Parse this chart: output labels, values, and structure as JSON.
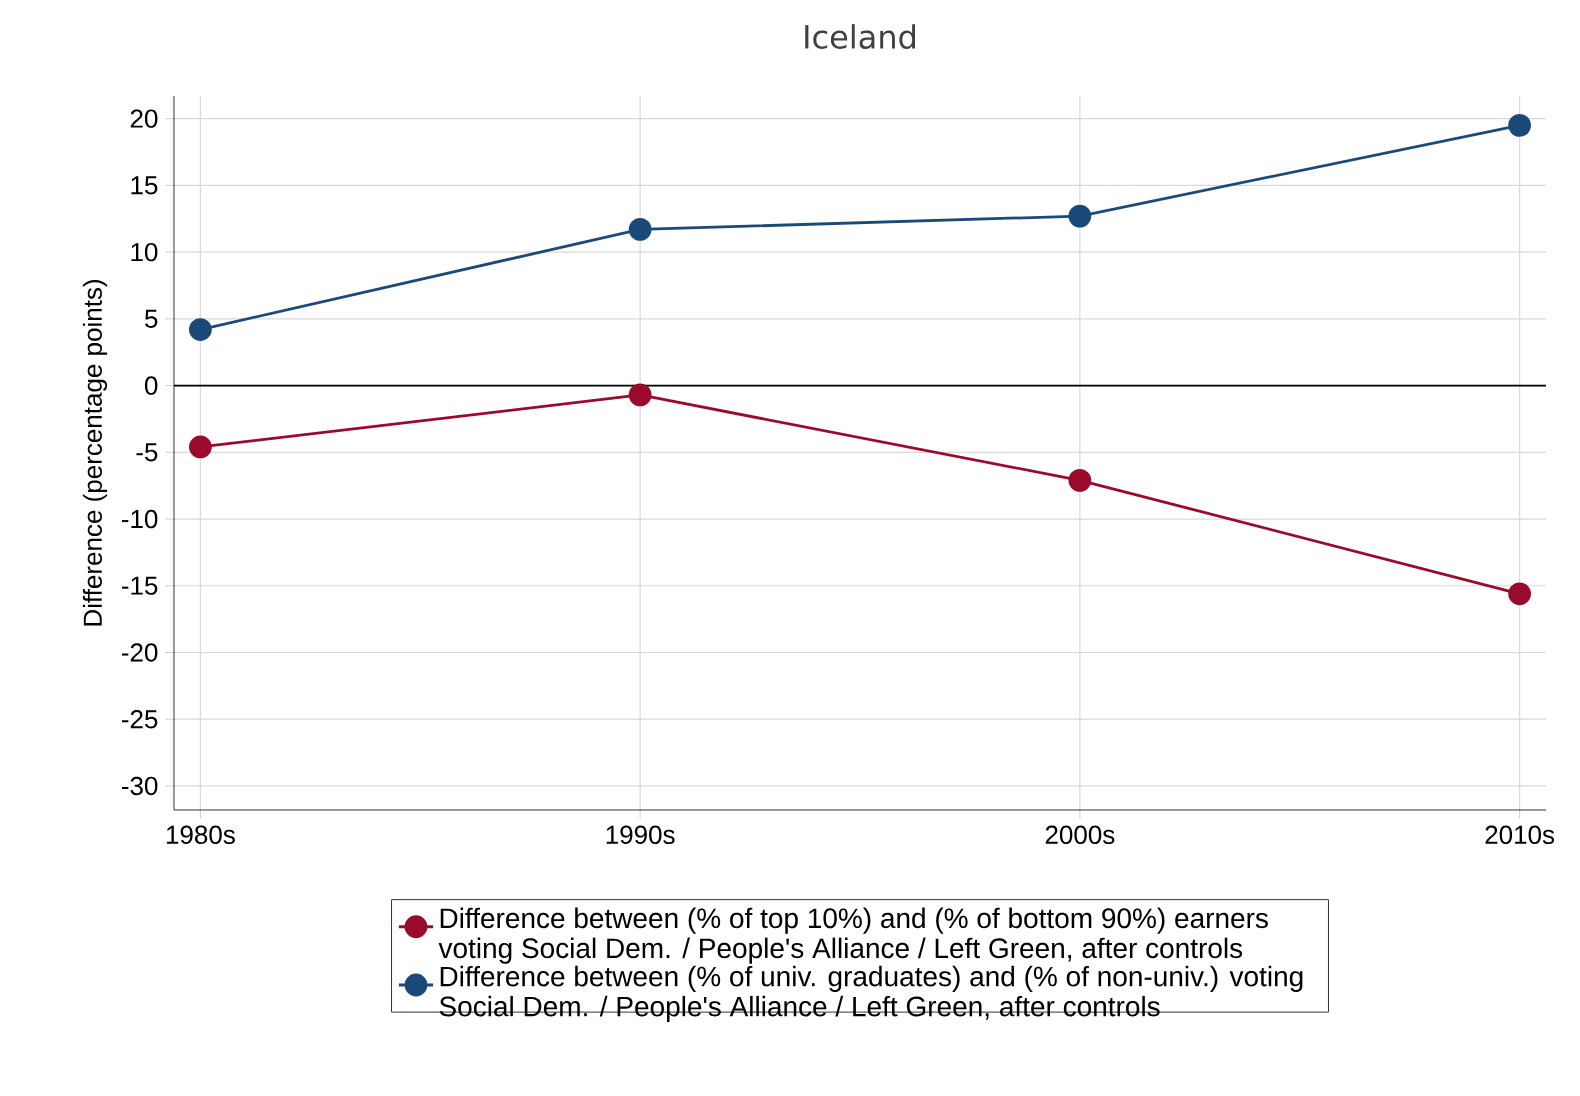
{
  "chart_data": {
    "type": "line",
    "title": "Iceland",
    "ylabel": "Difference (percentage points)",
    "categories": [
      "1980s",
      "1990s",
      "2000s",
      "2010s"
    ],
    "series": [
      {
        "name": "Difference between (% of top 10%) and (% of bottom 90%) earners voting Social Dem. / People's Alliance / Left Green, after controls",
        "color": "#9a0a2c",
        "values": [
          -4.6,
          -0.7,
          -7.1,
          -15.6
        ]
      },
      {
        "name": "Difference between (% of univ. graduates) and (% of non-univ.) voting Social Dem. / People's Alliance / Left Green, after controls",
        "color": "#1b4a78",
        "values": [
          4.2,
          11.7,
          12.7,
          19.5
        ]
      }
    ],
    "ylim": [
      -31.8,
      21.7
    ],
    "yticks": [
      -30,
      -25,
      -20,
      -15,
      -10,
      -5,
      0,
      5,
      10,
      15,
      20
    ],
    "ref_lines": [
      {
        "axis": "y",
        "value": 0,
        "color": "#000000"
      }
    ],
    "grid": true,
    "legend": "bottom",
    "marker": "circle",
    "line_style": "solid"
  }
}
